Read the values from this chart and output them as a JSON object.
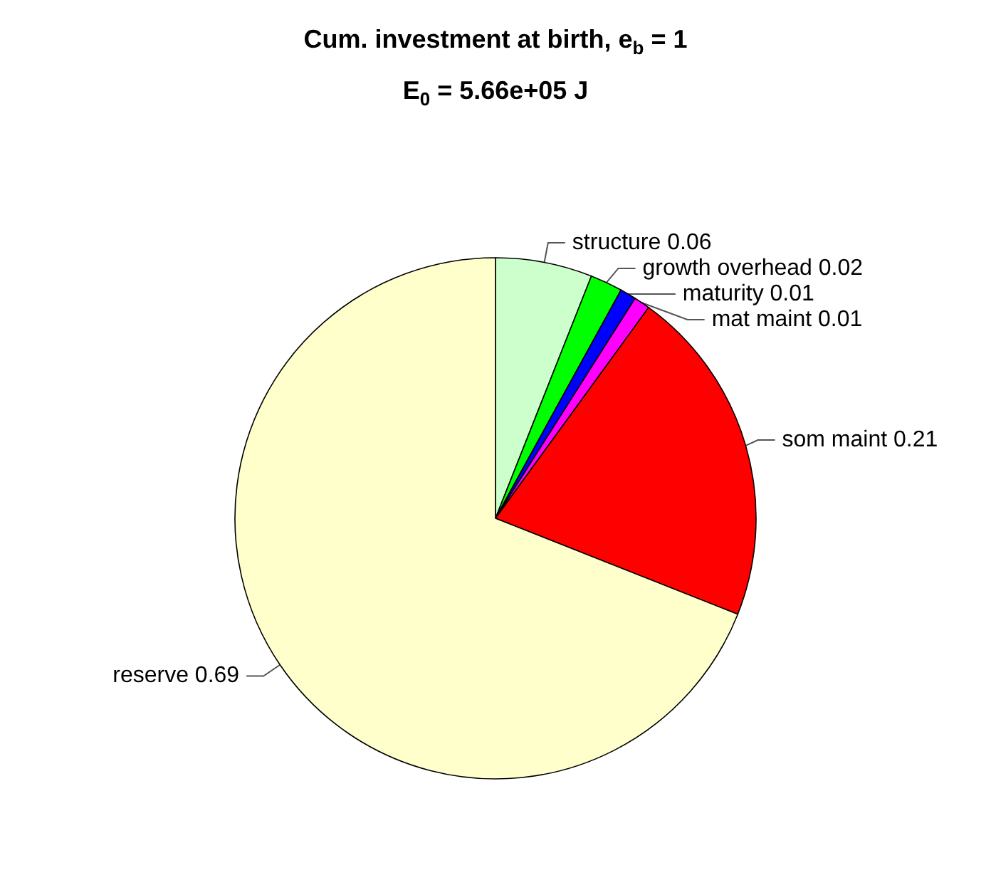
{
  "chart_data": {
    "type": "pie",
    "title": "Cum. investment at birth, e$_{b}$ = 1",
    "subtitle": "E$_{0}$ = 5.66e+05 J",
    "categories": [
      "structure 0.06",
      "growth overhead 0.02",
      "maturity 0.01",
      "mat maint 0.01",
      "som maint 0.21",
      "reserve 0.69"
    ],
    "values": [
      0.06,
      0.02,
      0.01,
      0.01,
      0.21,
      0.69
    ],
    "colors": [
      "#ccffcc",
      "#00ff00",
      "#0000ff",
      "#ff00ff",
      "#ff0000",
      "#ffffcc"
    ],
    "legend": false
  }
}
